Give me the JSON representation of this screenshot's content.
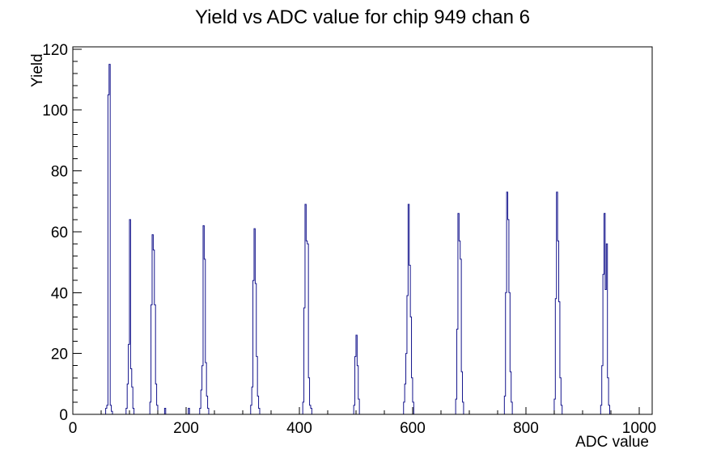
{
  "page": {
    "background": "#ffffff"
  },
  "colors": {
    "hist_line": "#14148c",
    "axis": "#000000",
    "text": "#000000",
    "background": "#ffffff"
  },
  "chart_data": {
    "type": "bar",
    "subtype": "step-histogram",
    "title": "Yield vs ADC value for chip 949 chan 6",
    "xlabel": "ADC value",
    "ylabel": "Yield",
    "xlim": [
      0,
      1023
    ],
    "ylim": [
      0,
      120.75
    ],
    "x_major_ticks": [
      0,
      200,
      400,
      600,
      800,
      1000
    ],
    "x_minor_tick_step": 50,
    "y_major_ticks": [
      0,
      20,
      40,
      60,
      80,
      100,
      120
    ],
    "y_minor_tick_step": 4,
    "grid": false,
    "legend": false,
    "bin_width": 2,
    "bins": [
      [
        58,
        2
      ],
      [
        60,
        3
      ],
      [
        62,
        105
      ],
      [
        64,
        115
      ],
      [
        66,
        3
      ],
      [
        68,
        1
      ],
      [
        94,
        2
      ],
      [
        96,
        10
      ],
      [
        98,
        23
      ],
      [
        100,
        64
      ],
      [
        102,
        15
      ],
      [
        104,
        9
      ],
      [
        106,
        2
      ],
      [
        136,
        4
      ],
      [
        138,
        36
      ],
      [
        140,
        59
      ],
      [
        142,
        54
      ],
      [
        144,
        36
      ],
      [
        146,
        10
      ],
      [
        148,
        3
      ],
      [
        162,
        2
      ],
      [
        204,
        2
      ],
      [
        224,
        2
      ],
      [
        226,
        8
      ],
      [
        228,
        16
      ],
      [
        230,
        62
      ],
      [
        232,
        51
      ],
      [
        234,
        17
      ],
      [
        236,
        6
      ],
      [
        238,
        2
      ],
      [
        314,
        3
      ],
      [
        316,
        9
      ],
      [
        318,
        44
      ],
      [
        320,
        61
      ],
      [
        322,
        43
      ],
      [
        324,
        19
      ],
      [
        326,
        6
      ],
      [
        328,
        2
      ],
      [
        406,
        4
      ],
      [
        408,
        35
      ],
      [
        410,
        69
      ],
      [
        412,
        57
      ],
      [
        414,
        56
      ],
      [
        416,
        12
      ],
      [
        418,
        3
      ],
      [
        420,
        2
      ],
      [
        496,
        3
      ],
      [
        498,
        19
      ],
      [
        500,
        26
      ],
      [
        502,
        16
      ],
      [
        504,
        5
      ],
      [
        584,
        4
      ],
      [
        586,
        10
      ],
      [
        588,
        20
      ],
      [
        590,
        39
      ],
      [
        592,
        69
      ],
      [
        594,
        49
      ],
      [
        596,
        32
      ],
      [
        598,
        12
      ],
      [
        600,
        4
      ],
      [
        676,
        5
      ],
      [
        678,
        28
      ],
      [
        680,
        66
      ],
      [
        682,
        57
      ],
      [
        684,
        51
      ],
      [
        686,
        14
      ],
      [
        688,
        4
      ],
      [
        762,
        6
      ],
      [
        764,
        40
      ],
      [
        766,
        73
      ],
      [
        768,
        64
      ],
      [
        770,
        40
      ],
      [
        772,
        14
      ],
      [
        774,
        4
      ],
      [
        850,
        5
      ],
      [
        852,
        38
      ],
      [
        854,
        73
      ],
      [
        856,
        57
      ],
      [
        858,
        37
      ],
      [
        860,
        12
      ],
      [
        862,
        3
      ],
      [
        932,
        3
      ],
      [
        934,
        16
      ],
      [
        936,
        46
      ],
      [
        938,
        66
      ],
      [
        940,
        41
      ],
      [
        942,
        56
      ],
      [
        944,
        12
      ],
      [
        946,
        3
      ]
    ]
  }
}
